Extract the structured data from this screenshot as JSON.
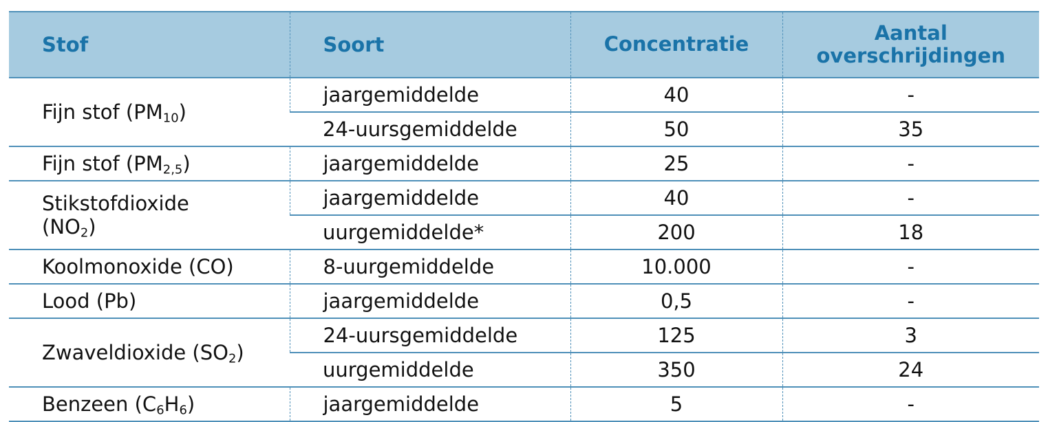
{
  "headers": {
    "stof": "Stof",
    "soort": "Soort",
    "concentratie": "Concentratie",
    "aantal_line1": "Aantal",
    "aantal_line2": "overschrijdingen"
  },
  "substances": {
    "pm10": {
      "name": "Fijn stof (PM",
      "sub": "10",
      "tail": ")"
    },
    "pm25": {
      "name": "Fijn stof (PM",
      "sub": "2,5",
      "tail": ")"
    },
    "no2": {
      "line1": "Stikstofdioxide",
      "name": "(NO",
      "sub": "2",
      "tail": ")"
    },
    "co": {
      "name": "Koolmonoxide (CO)"
    },
    "pb": {
      "name": "Lood (Pb)"
    },
    "so2": {
      "name": "Zwaveldioxide (SO",
      "sub": "2",
      "tail": ")"
    },
    "c6h6": {
      "name": "Benzeen (C",
      "sub1": "6",
      "mid": "H",
      "sub2": "6",
      "tail": ")"
    }
  },
  "rows": [
    {
      "soort": "jaargemiddelde",
      "concentratie": "40",
      "overschrijdingen": "-"
    },
    {
      "soort": "24-uursgemiddelde",
      "concentratie": "50",
      "overschrijdingen": "35"
    },
    {
      "soort": "jaargemiddelde",
      "concentratie": "25",
      "overschrijdingen": "-"
    },
    {
      "soort": "jaargemiddelde",
      "concentratie": "40",
      "overschrijdingen": "-"
    },
    {
      "soort": "uurgemiddelde*",
      "concentratie": "200",
      "overschrijdingen": "18"
    },
    {
      "soort": "8-uurgemiddelde",
      "concentratie": "10.000",
      "overschrijdingen": "-"
    },
    {
      "soort": "jaargemiddelde",
      "concentratie": "0,5",
      "overschrijdingen": "-"
    },
    {
      "soort": "24-uursgemiddelde",
      "concentratie": "125",
      "overschrijdingen": "3"
    },
    {
      "soort": "uurgemiddelde",
      "concentratie": "350",
      "overschrijdingen": "24"
    },
    {
      "soort": "jaargemiddelde",
      "concentratie": "5",
      "overschrijdingen": "-"
    }
  ],
  "colors": {
    "header_bg": "#a6cbe0",
    "header_text": "#1a73a8",
    "rule": "#4d8fb8"
  }
}
